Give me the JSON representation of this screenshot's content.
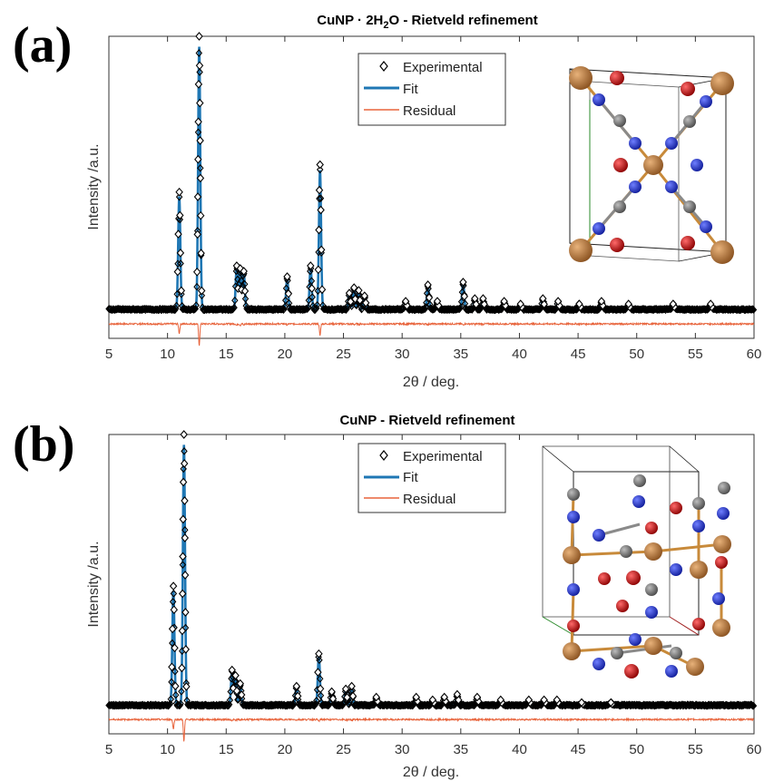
{
  "panels": [
    {
      "letter": "(a)"
    },
    {
      "letter": "(b)"
    }
  ],
  "colors": {
    "fit": "#1f77b4",
    "residual": "#e8643c",
    "experimental": "#000000",
    "axes": "#333333",
    "atom_cu": "#b8732f",
    "atom_n": "#2233cc",
    "atom_c": "#7a7a7a",
    "atom_o": "#cc1111"
  },
  "chart_data": [
    {
      "type": "line",
      "title_parts": {
        "pre": "CuNP · 2H",
        "sub": "2",
        "post": "O - Rietveld refinement"
      },
      "xlabel": "2θ / deg.",
      "ylabel": "Intensity /a.u.",
      "xlim": [
        5,
        60
      ],
      "ylim": [
        -0.1,
        1.05
      ],
      "xticks": [
        5,
        10,
        15,
        20,
        25,
        30,
        35,
        40,
        45,
        50,
        55,
        60
      ],
      "legend": {
        "placement": "top-center",
        "entries": [
          "Experimental",
          "Fit",
          "Residual"
        ]
      },
      "series": [
        {
          "name": "Experimental",
          "style": "diamond-markers"
        },
        {
          "name": "Fit",
          "style": "line"
        },
        {
          "name": "Residual",
          "style": "line",
          "offset": -0.045
        }
      ],
      "baseline": 0.01,
      "peaks": [
        {
          "x": 11.0,
          "y": 0.43
        },
        {
          "x": 12.7,
          "y": 1.0
        },
        {
          "x": 15.9,
          "y": 0.16
        },
        {
          "x": 16.2,
          "y": 0.15
        },
        {
          "x": 16.5,
          "y": 0.14
        },
        {
          "x": 20.2,
          "y": 0.12
        },
        {
          "x": 22.2,
          "y": 0.16
        },
        {
          "x": 23.0,
          "y": 0.53
        },
        {
          "x": 25.5,
          "y": 0.06
        },
        {
          "x": 25.9,
          "y": 0.08
        },
        {
          "x": 26.3,
          "y": 0.07
        },
        {
          "x": 26.8,
          "y": 0.05
        },
        {
          "x": 30.3,
          "y": 0.03
        },
        {
          "x": 32.2,
          "y": 0.09
        },
        {
          "x": 33.0,
          "y": 0.03
        },
        {
          "x": 35.2,
          "y": 0.1
        },
        {
          "x": 36.2,
          "y": 0.04
        },
        {
          "x": 36.9,
          "y": 0.04
        },
        {
          "x": 38.7,
          "y": 0.03
        },
        {
          "x": 40.1,
          "y": 0.02
        },
        {
          "x": 42.0,
          "y": 0.04
        },
        {
          "x": 43.3,
          "y": 0.03
        },
        {
          "x": 45.1,
          "y": 0.02
        },
        {
          "x": 47.0,
          "y": 0.03
        },
        {
          "x": 49.3,
          "y": 0.02
        },
        {
          "x": 53.1,
          "y": 0.02
        },
        {
          "x": 56.3,
          "y": 0.02
        }
      ]
    },
    {
      "type": "line",
      "title_parts": {
        "pre": "CuNP - Rietveld refinement",
        "sub": "",
        "post": ""
      },
      "xlabel": "2θ / deg.",
      "ylabel": "Intensity /a.u.",
      "xlim": [
        5,
        60
      ],
      "ylim": [
        -0.1,
        1.05
      ],
      "xticks": [
        5,
        10,
        15,
        20,
        25,
        30,
        35,
        40,
        45,
        50,
        55,
        60
      ],
      "legend": {
        "placement": "top-center",
        "entries": [
          "Experimental",
          "Fit",
          "Residual"
        ]
      },
      "series": [
        {
          "name": "Experimental",
          "style": "diamond-markers"
        },
        {
          "name": "Fit",
          "style": "line"
        },
        {
          "name": "Residual",
          "style": "line",
          "offset": -0.045
        }
      ],
      "baseline": 0.01,
      "peaks": [
        {
          "x": 10.5,
          "y": 0.44
        },
        {
          "x": 11.4,
          "y": 1.0
        },
        {
          "x": 15.5,
          "y": 0.13
        },
        {
          "x": 15.8,
          "y": 0.11
        },
        {
          "x": 16.2,
          "y": 0.08
        },
        {
          "x": 21.0,
          "y": 0.07
        },
        {
          "x": 22.9,
          "y": 0.19
        },
        {
          "x": 24.0,
          "y": 0.05
        },
        {
          "x": 25.2,
          "y": 0.06
        },
        {
          "x": 25.7,
          "y": 0.07
        },
        {
          "x": 27.8,
          "y": 0.03
        },
        {
          "x": 31.2,
          "y": 0.03
        },
        {
          "x": 32.6,
          "y": 0.02
        },
        {
          "x": 33.6,
          "y": 0.03
        },
        {
          "x": 34.7,
          "y": 0.04
        },
        {
          "x": 36.4,
          "y": 0.03
        },
        {
          "x": 38.4,
          "y": 0.02
        },
        {
          "x": 40.8,
          "y": 0.02
        },
        {
          "x": 42.1,
          "y": 0.02
        },
        {
          "x": 43.2,
          "y": 0.02
        },
        {
          "x": 45.3,
          "y": 0.01
        },
        {
          "x": 47.8,
          "y": 0.01
        }
      ]
    }
  ]
}
